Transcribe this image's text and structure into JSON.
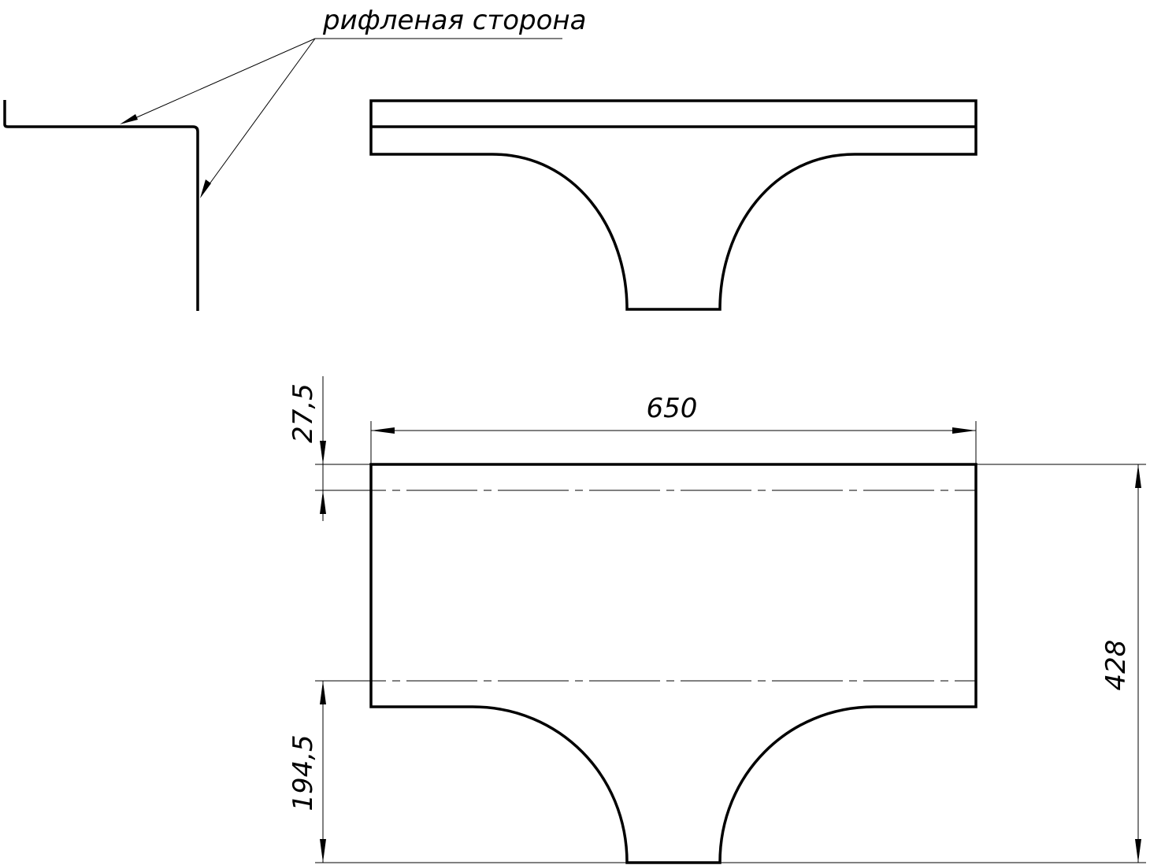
{
  "note": {
    "text": "рифленая сторона"
  },
  "dimensions": {
    "width": "650",
    "height": "428",
    "top_offset": "27,5",
    "bottom_offset": "194,5"
  }
}
